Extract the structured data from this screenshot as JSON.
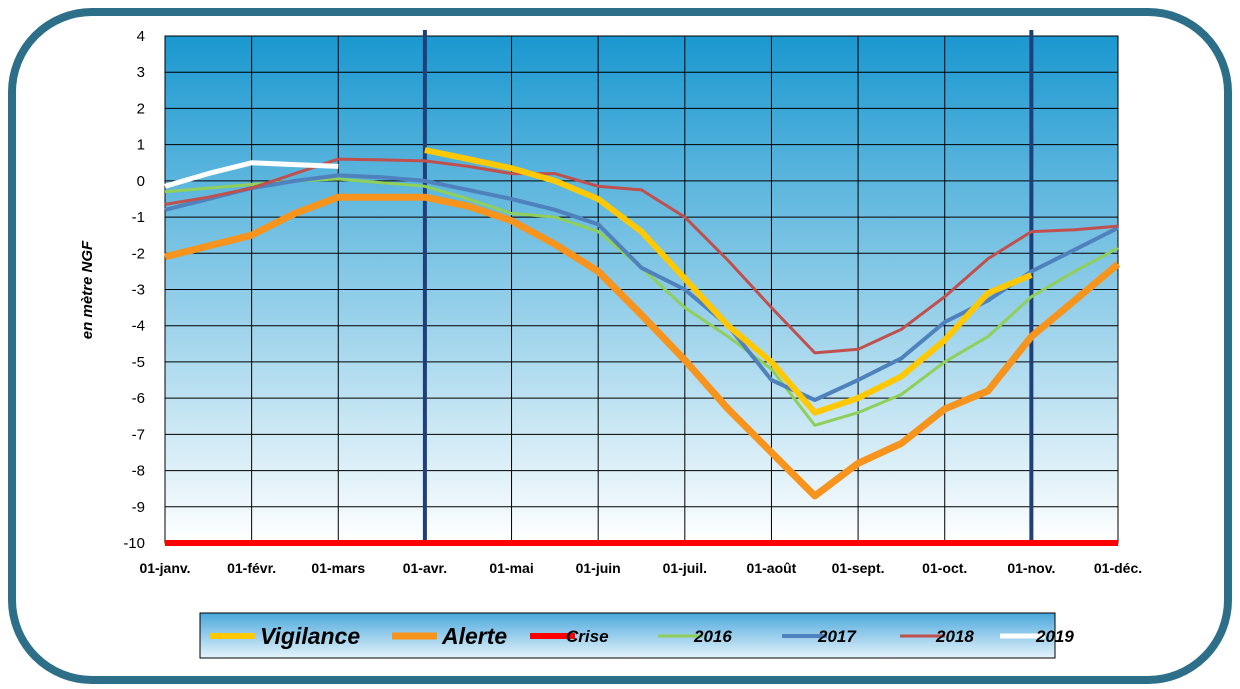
{
  "chart_data": {
    "type": "line",
    "y_label": "en mètre NGF",
    "categories": [
      "01-janv.",
      null,
      "01-févr.",
      null,
      "01-mars",
      null,
      "01-avr.",
      null,
      "01-mai",
      null,
      "01-juin",
      null,
      "01-juil.",
      null,
      "01-août",
      null,
      "01-sept.",
      null,
      "01-oct.",
      null,
      "01-nov.",
      null,
      "01-déc."
    ],
    "ylim": [
      -10,
      4
    ],
    "yticks": [
      -10,
      -9,
      -8,
      -7,
      -6,
      -5,
      -4,
      -3,
      -2,
      -1,
      0,
      1,
      2,
      3,
      4
    ],
    "grid": true,
    "vertical_lines": [
      "01-avr.",
      "01-nov."
    ],
    "vertical_line_color": "#1f3f7a",
    "legend": "bottom",
    "series": [
      {
        "name": "Vigilance",
        "color": "#ffc800",
        "width": 6,
        "values": [
          null,
          null,
          null,
          null,
          null,
          null,
          0.85,
          0.6,
          0.35,
          0.0,
          -0.5,
          -1.4,
          -2.7,
          -4.0,
          -5.0,
          -6.4,
          -6.0,
          -5.4,
          -4.4,
          -3.1,
          -2.6,
          null,
          null
        ]
      },
      {
        "name": "Alerte",
        "color": "#f7941d",
        "width": 7,
        "values": [
          -2.1,
          -1.8,
          -1.5,
          -0.9,
          -0.45,
          -0.45,
          -0.45,
          -0.7,
          -1.1,
          -1.75,
          -2.5,
          -3.7,
          -4.95,
          -6.3,
          -7.5,
          -8.7,
          -7.8,
          -7.25,
          -6.3,
          -5.8,
          -4.3,
          -3.3,
          -2.3
        ]
      },
      {
        "name": "Crise",
        "color": "#ff0000",
        "width": 6,
        "values": [
          -10,
          -10,
          -10,
          -10,
          -10,
          -10,
          -10,
          -10,
          -10,
          -10,
          -10,
          -10,
          -10,
          -10,
          -10,
          -10,
          -10,
          -10,
          -10,
          -10,
          -10,
          -10,
          -10
        ]
      },
      {
        "name": "2016",
        "color": "#8fcf5a",
        "width": 3,
        "values": [
          -0.3,
          -0.2,
          -0.1,
          0.0,
          0.05,
          -0.05,
          -0.15,
          -0.5,
          -0.9,
          -1.0,
          -1.4,
          -2.4,
          -3.5,
          -4.3,
          -5.2,
          -6.75,
          -6.4,
          -5.9,
          -5.0,
          -4.3,
          -3.2,
          -2.5,
          -1.85
        ]
      },
      {
        "name": "2017",
        "color": "#4f81bd",
        "width": 4,
        "values": [
          -0.8,
          -0.5,
          -0.2,
          0.0,
          0.15,
          0.1,
          0.0,
          -0.25,
          -0.5,
          -0.8,
          -1.2,
          -2.4,
          -3.0,
          -4.0,
          -5.5,
          -6.05,
          -5.5,
          -4.9,
          -3.9,
          -3.3,
          -2.5,
          -1.9,
          -1.3
        ]
      },
      {
        "name": "2018",
        "color": "#c0504d",
        "width": 3,
        "values": [
          -0.65,
          -0.45,
          -0.2,
          0.2,
          0.6,
          0.58,
          0.55,
          0.4,
          0.2,
          0.2,
          -0.15,
          -0.25,
          -1.0,
          -2.2,
          -3.5,
          -4.75,
          -4.65,
          -4.1,
          -3.2,
          -2.15,
          -1.4,
          -1.35,
          -1.25
        ]
      },
      {
        "name": "2019",
        "color": "#ffffff",
        "width": 5,
        "values": [
          -0.15,
          0.2,
          0.5,
          0.45,
          0.4,
          null,
          null,
          null,
          null,
          null,
          null,
          null,
          null,
          null,
          null,
          null,
          null,
          null,
          null,
          null,
          null,
          null,
          null
        ]
      }
    ]
  }
}
